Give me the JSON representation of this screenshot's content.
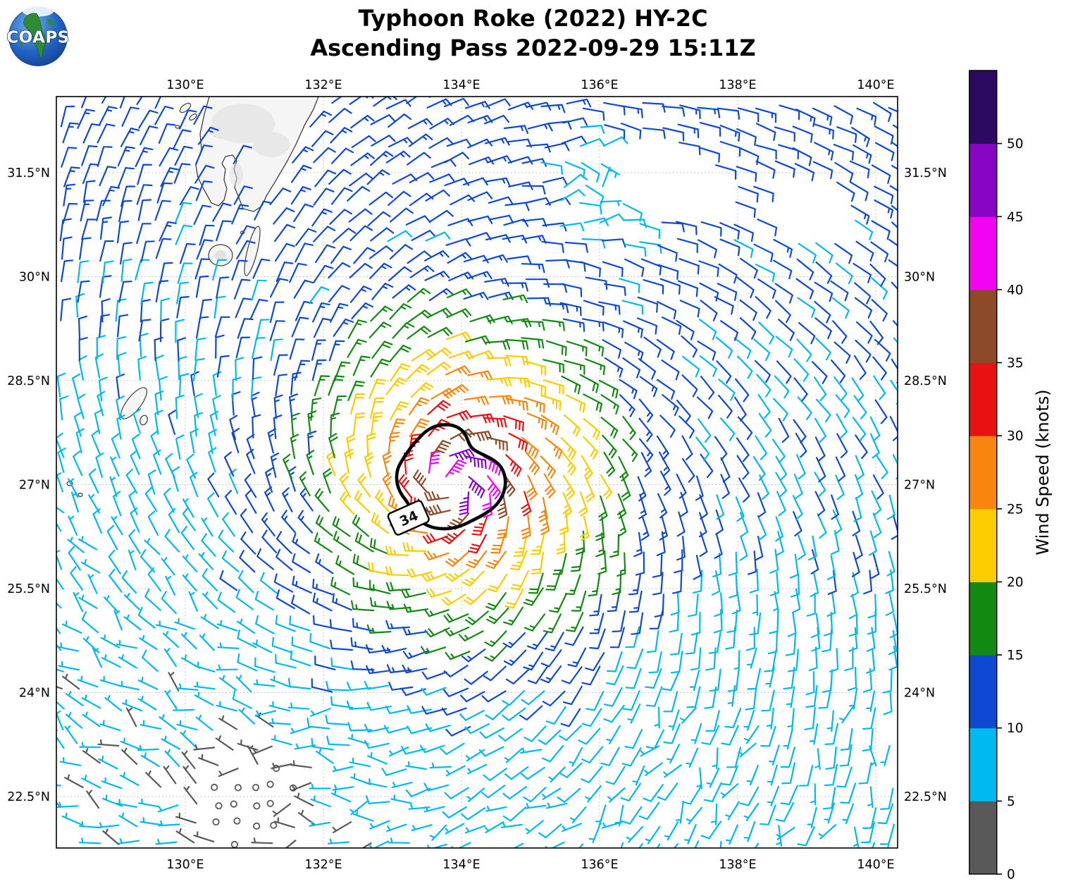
{
  "header": {
    "logo_text": "COAPS",
    "title_line1": "Typhoon Roke (2022) HY-2C",
    "title_line2": "Ascending Pass 2022-09-29 15:11Z"
  },
  "chart_data": {
    "type": "wind_barb_map",
    "title": "Typhoon Roke (2022) HY-2C",
    "subtitle": "Ascending Pass 2022-09-29 15:11Z",
    "x_axis": {
      "tick_labels": [
        "130°E",
        "132°E",
        "134°E",
        "136°E",
        "138°E",
        "140°E"
      ],
      "tick_values": [
        130,
        132,
        134,
        136,
        138,
        140
      ],
      "range_deg": [
        128.13,
        140.32
      ],
      "label_sides": [
        "top",
        "bottom"
      ]
    },
    "y_axis": {
      "tick_labels": [
        "31.5°N",
        "30°N",
        "28.5°N",
        "27°N",
        "25.5°N",
        "24°N",
        "22.5°N"
      ],
      "tick_values": [
        31.5,
        30,
        28.5,
        27,
        25.5,
        24,
        22.5
      ],
      "range_deg": [
        21.76,
        32.6
      ],
      "label_sides": [
        "left",
        "right"
      ]
    },
    "grid": "dashed",
    "colorbar": {
      "title": "Wind Speed (knots)",
      "tick_labels": [
        "0",
        "5",
        "10",
        "15",
        "20",
        "25",
        "30",
        "35",
        "40",
        "45",
        "50"
      ],
      "levels_knots": [
        0,
        5,
        10,
        15,
        20,
        25,
        30,
        35,
        40,
        45,
        50
      ],
      "segment_colors": [
        "#595959",
        "#00b9ee",
        "#0f49d2",
        "#128a12",
        "#fbcc00",
        "#f8860e",
        "#e81212",
        "#8c4a28",
        "#f203f2",
        "#8805c5",
        "#2c0a62"
      ]
    },
    "contour": {
      "label": "34",
      "center_lon_e": 133.85,
      "center_lat_n": 27.0
    },
    "wind_barbs": {
      "units": "knots",
      "barb_increments": {
        "half": 5,
        "full": 10,
        "flag": 50
      },
      "calm_symbol": "circle",
      "grid_spacing_deg": 0.28,
      "field_model": {
        "center_lon_e": 133.85,
        "center_lat_n": 27.0,
        "rotation": "counterclockwise",
        "inflow_angle_deg": 22,
        "max_speed_kt": 43,
        "radius_profile_deg_knots": [
          [
            0,
            43
          ],
          [
            0.35,
            43
          ],
          [
            0.55,
            37
          ],
          [
            0.8,
            32
          ],
          [
            1.1,
            27
          ],
          [
            1.5,
            23
          ],
          [
            2.1,
            18
          ],
          [
            2.9,
            12.5
          ],
          [
            3.8,
            9
          ],
          [
            5.0,
            7
          ],
          [
            9.0,
            6.5
          ]
        ],
        "asymmetry": {
          "amplitude": 0.15,
          "toward_deg": 40
        },
        "ambient_corners_knots": {
          "nw": 13,
          "ne": 12,
          "sw": 4,
          "se": 7.5
        },
        "calm_zone": {
          "lon_e": 131.0,
          "lat_n": 22.4,
          "radius_deg": 1.35
        },
        "saddle_zone": {
          "lon_e": 136.0,
          "lat_n": 31.35,
          "radius_deg": 1.25
        },
        "no_data_zones": [
          {
            "lon_e": 136.9,
            "lat_n": 31.4,
            "rx_deg": 0.9,
            "ry_deg": 0.5,
            "rot_deg": -25
          },
          {
            "lon_e": 138.95,
            "lat_n": 30.95,
            "rx_deg": 0.7,
            "ry_deg": 0.4,
            "rot_deg": -25
          }
        ]
      }
    }
  }
}
